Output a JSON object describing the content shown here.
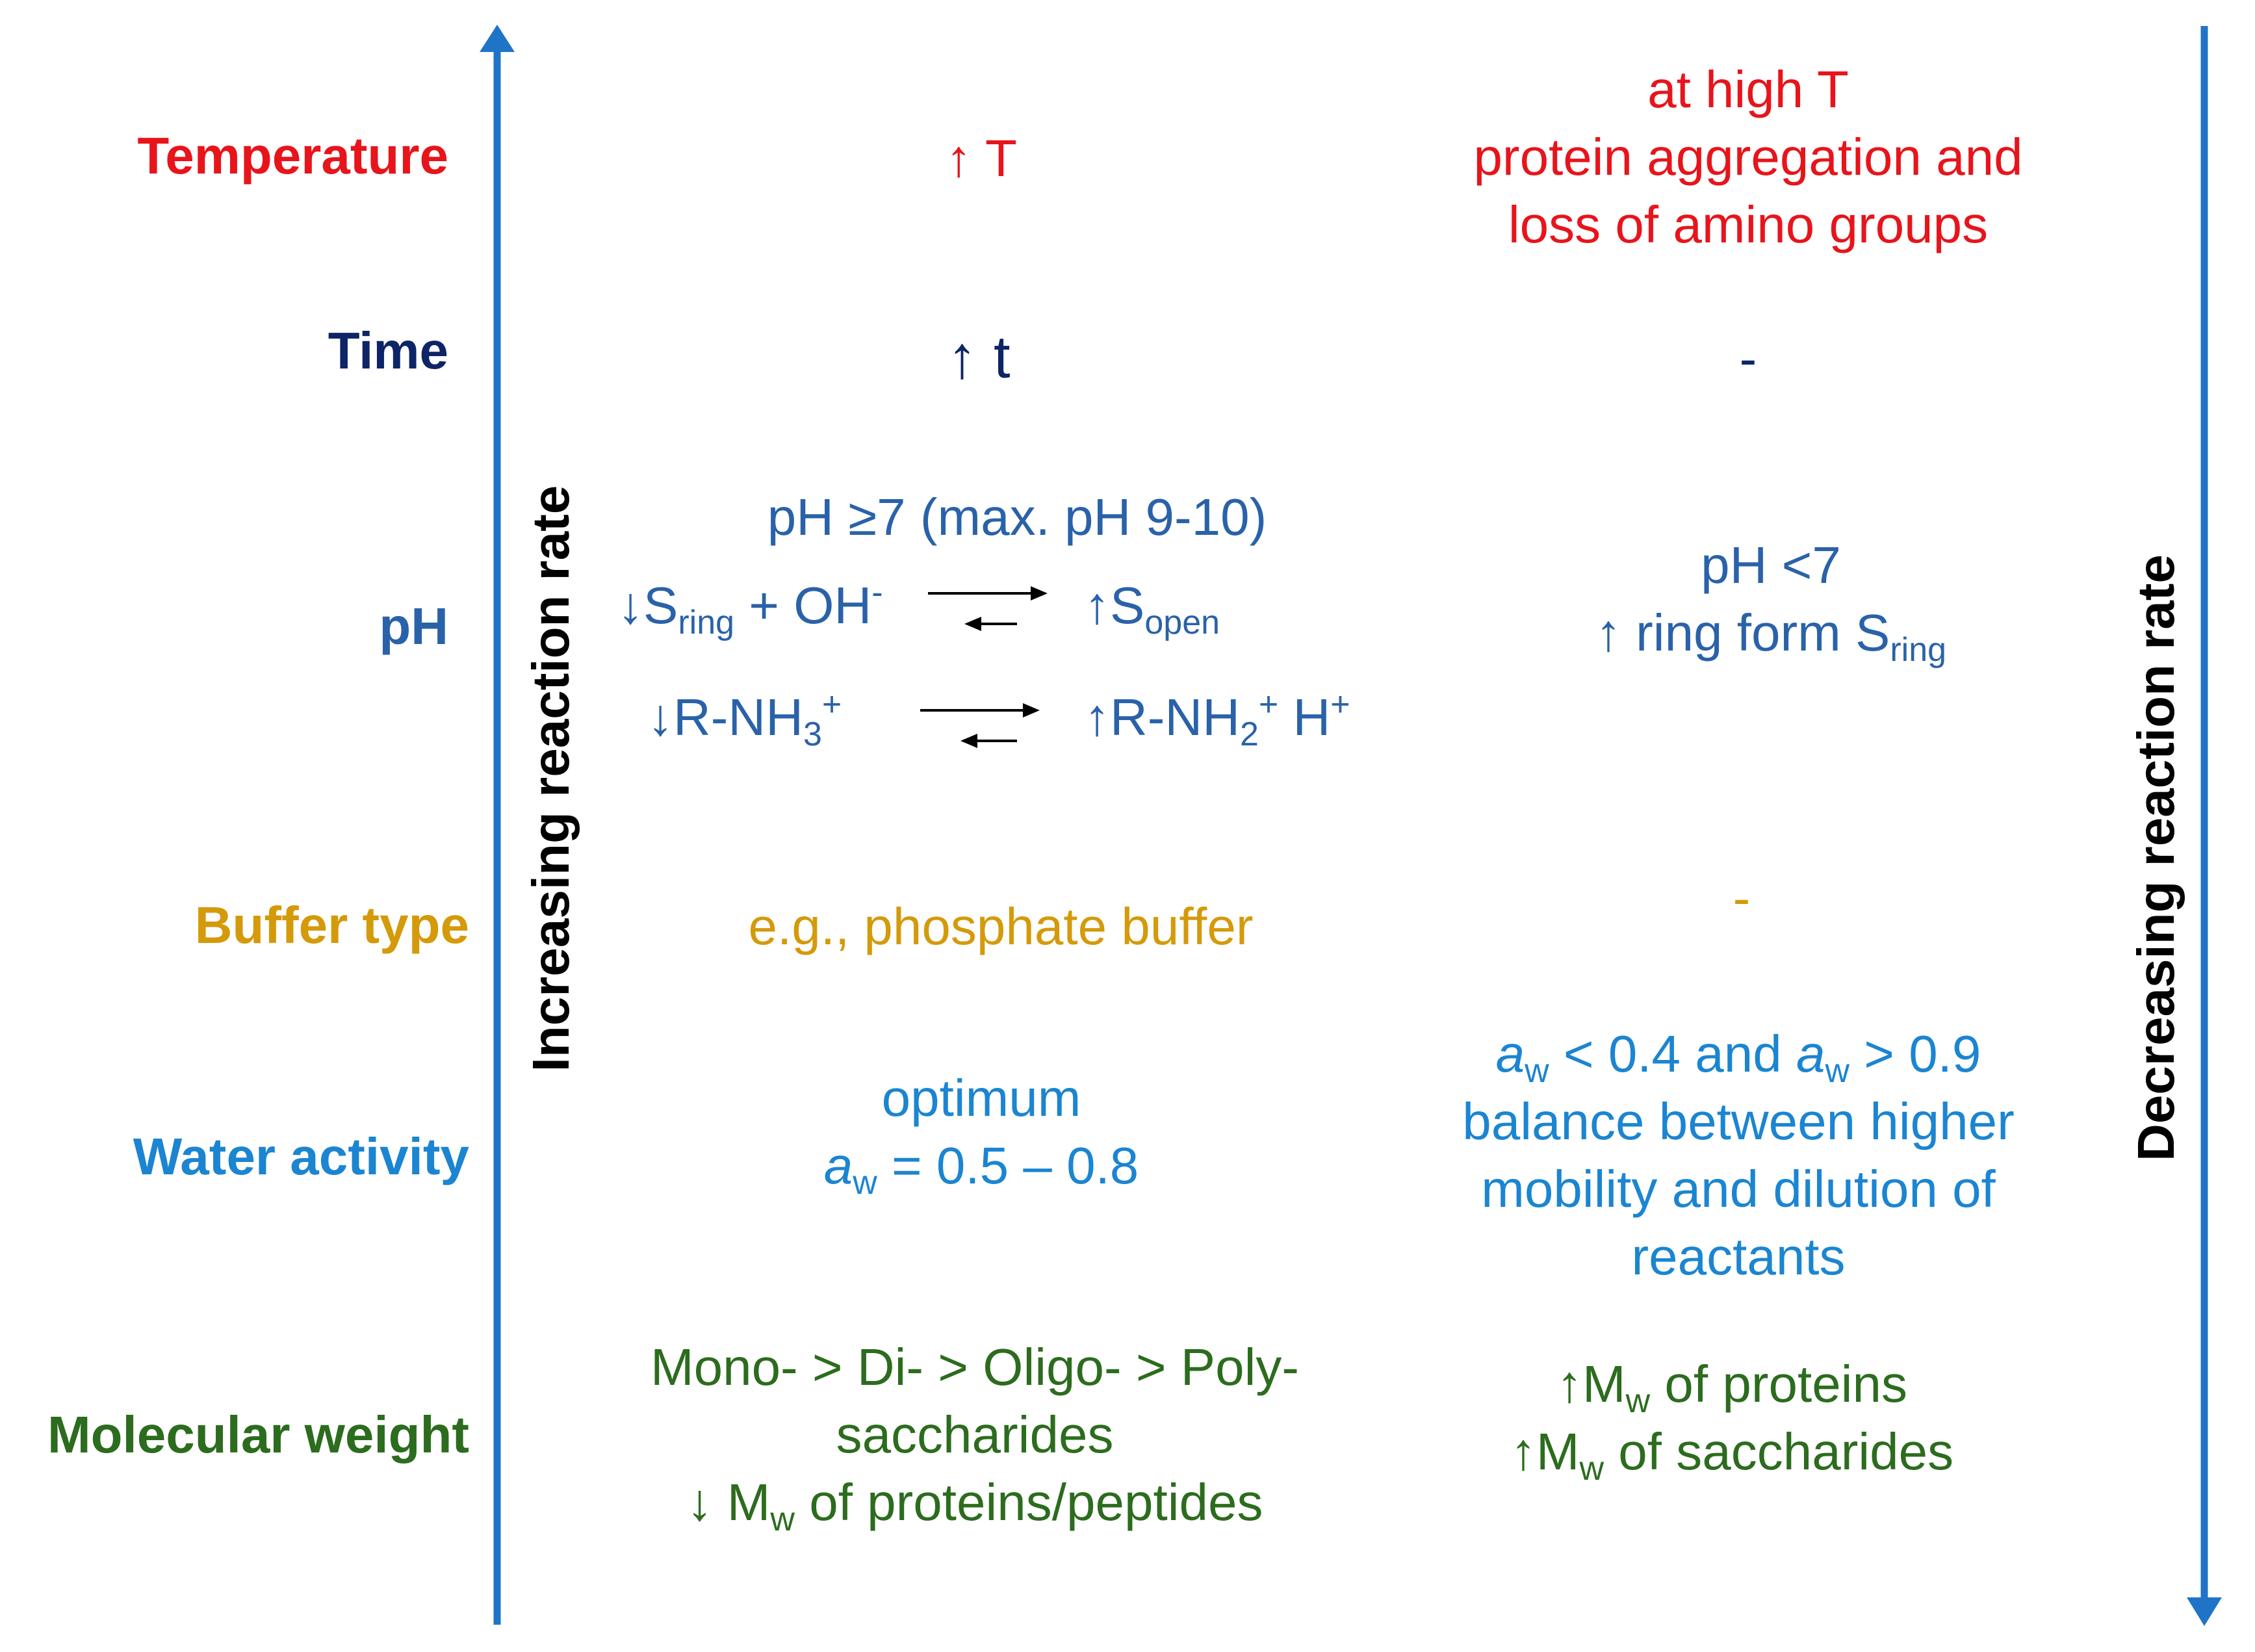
{
  "axes": {
    "left": "Increasing reaction rate",
    "right": "Decreasing reaction rate",
    "color": "#1f74c8"
  },
  "rows": {
    "temperature": {
      "label": "Temperature",
      "color": "#e8141b",
      "increase": "↑ T",
      "decrease": [
        "at high T",
        "protein aggregation and",
        "loss of amino groups"
      ]
    },
    "time": {
      "label": "Time",
      "color": "#0d2466",
      "increase": "↑ t",
      "decrease": "-"
    },
    "ph": {
      "label": "pH",
      "color": "#2a62a9",
      "increase_title": "pH ≥7 (max.  pH 9-10)",
      "eq1_left": "↓S",
      "eq1_left_sub": "ring",
      "eq1_plus": " + OH",
      "eq1_sup": "-",
      "eq1_right": "↑S",
      "eq1_right_sub": "open",
      "eq2_left": "↓R-NH",
      "eq2_left_sub": "3",
      "eq2_left_sup": "+",
      "eq2_right": "↑R-NH",
      "eq2_right_sub": "2",
      "eq2_right_sup": "+",
      "eq2_right_tail": " H",
      "eq2_right_tail_sup": "+",
      "decrease_line1": "pH <7",
      "decrease_line2": "↑ ring form S",
      "decrease_line2_sub": "ring"
    },
    "buffer": {
      "label": "Buffer type",
      "color": "#d49a0a",
      "increase": "e.g., phosphate  buffer",
      "decrease": "-"
    },
    "water": {
      "label": "Water activity",
      "color": "#1b85d1",
      "increase_line1": "optimum",
      "increase_a": "a",
      "increase_w": "w",
      "increase_rest": " = 0.5 – 0.8",
      "decrease_a1": "a",
      "decrease_w1": "w",
      "decrease_mid": " < 0.4 and ",
      "decrease_a2": "a",
      "decrease_w2": "w",
      "decrease_end": " > 0.9",
      "decrease_lines": [
        "balance between  higher",
        "mobility and dilution  of",
        "reactants"
      ]
    },
    "molecular": {
      "label": "Molecular weight",
      "color": "#2c6c1e",
      "increase_line1": "Mono-  > Di-  > Oligo-  > Poly-",
      "increase_line2": "saccharides",
      "increase_line3_pre": "↓ M",
      "increase_line3_sub": "w",
      "increase_line3_post": " of proteins/peptides",
      "decrease_line1_pre": "↑M",
      "decrease_line1_sub": "w",
      "decrease_line1_post": " of proteins",
      "decrease_line2_pre": "↑M",
      "decrease_line2_sub": "w",
      "decrease_line2_post": " of saccharides"
    }
  }
}
